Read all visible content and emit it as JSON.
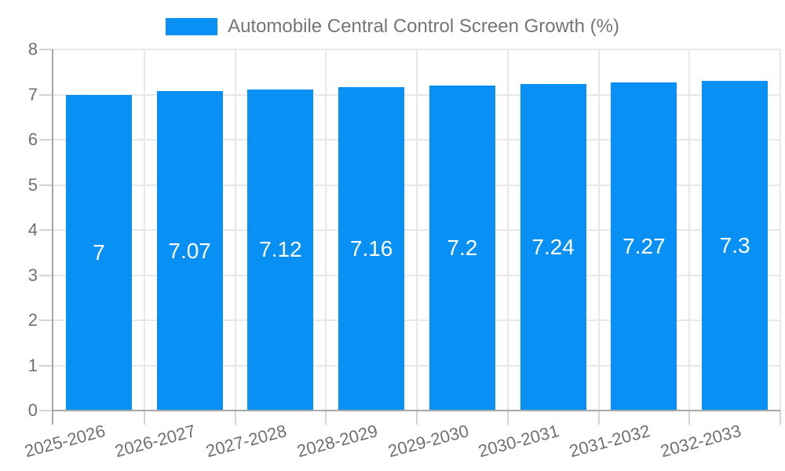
{
  "chart_data": {
    "type": "bar",
    "title": "Automobile Central Control Screen Growth (%)",
    "categories": [
      "2025-2026",
      "2026-2027",
      "2027-2028",
      "2028-2029",
      "2029-2030",
      "2030-2031",
      "2031-2032",
      "2032-2033"
    ],
    "values": [
      7,
      7.07,
      7.12,
      7.16,
      7.2,
      7.24,
      7.27,
      7.3
    ],
    "value_labels": [
      "7",
      "7.07",
      "7.12",
      "7.16",
      "7.2",
      "7.24",
      "7.27",
      "7.3"
    ],
    "xlabel": "",
    "ylabel": "",
    "ylim": [
      0,
      8
    ],
    "yticks": [
      0,
      1,
      2,
      3,
      4,
      5,
      6,
      7,
      8
    ],
    "grid": true,
    "legend_position": "top",
    "bar_label_position": "inside-center",
    "x_tick_rotation_deg": -15
  },
  "colors": {
    "bar": "#0990f5",
    "grid": "#e8e8e8",
    "axis_line": "#a8a8a8",
    "tick_mark": "#d4d4d4",
    "tick_text": "#707070",
    "legend_text": "#757575",
    "bar_label_text": "#ffffff",
    "background": "#ffffff"
  }
}
